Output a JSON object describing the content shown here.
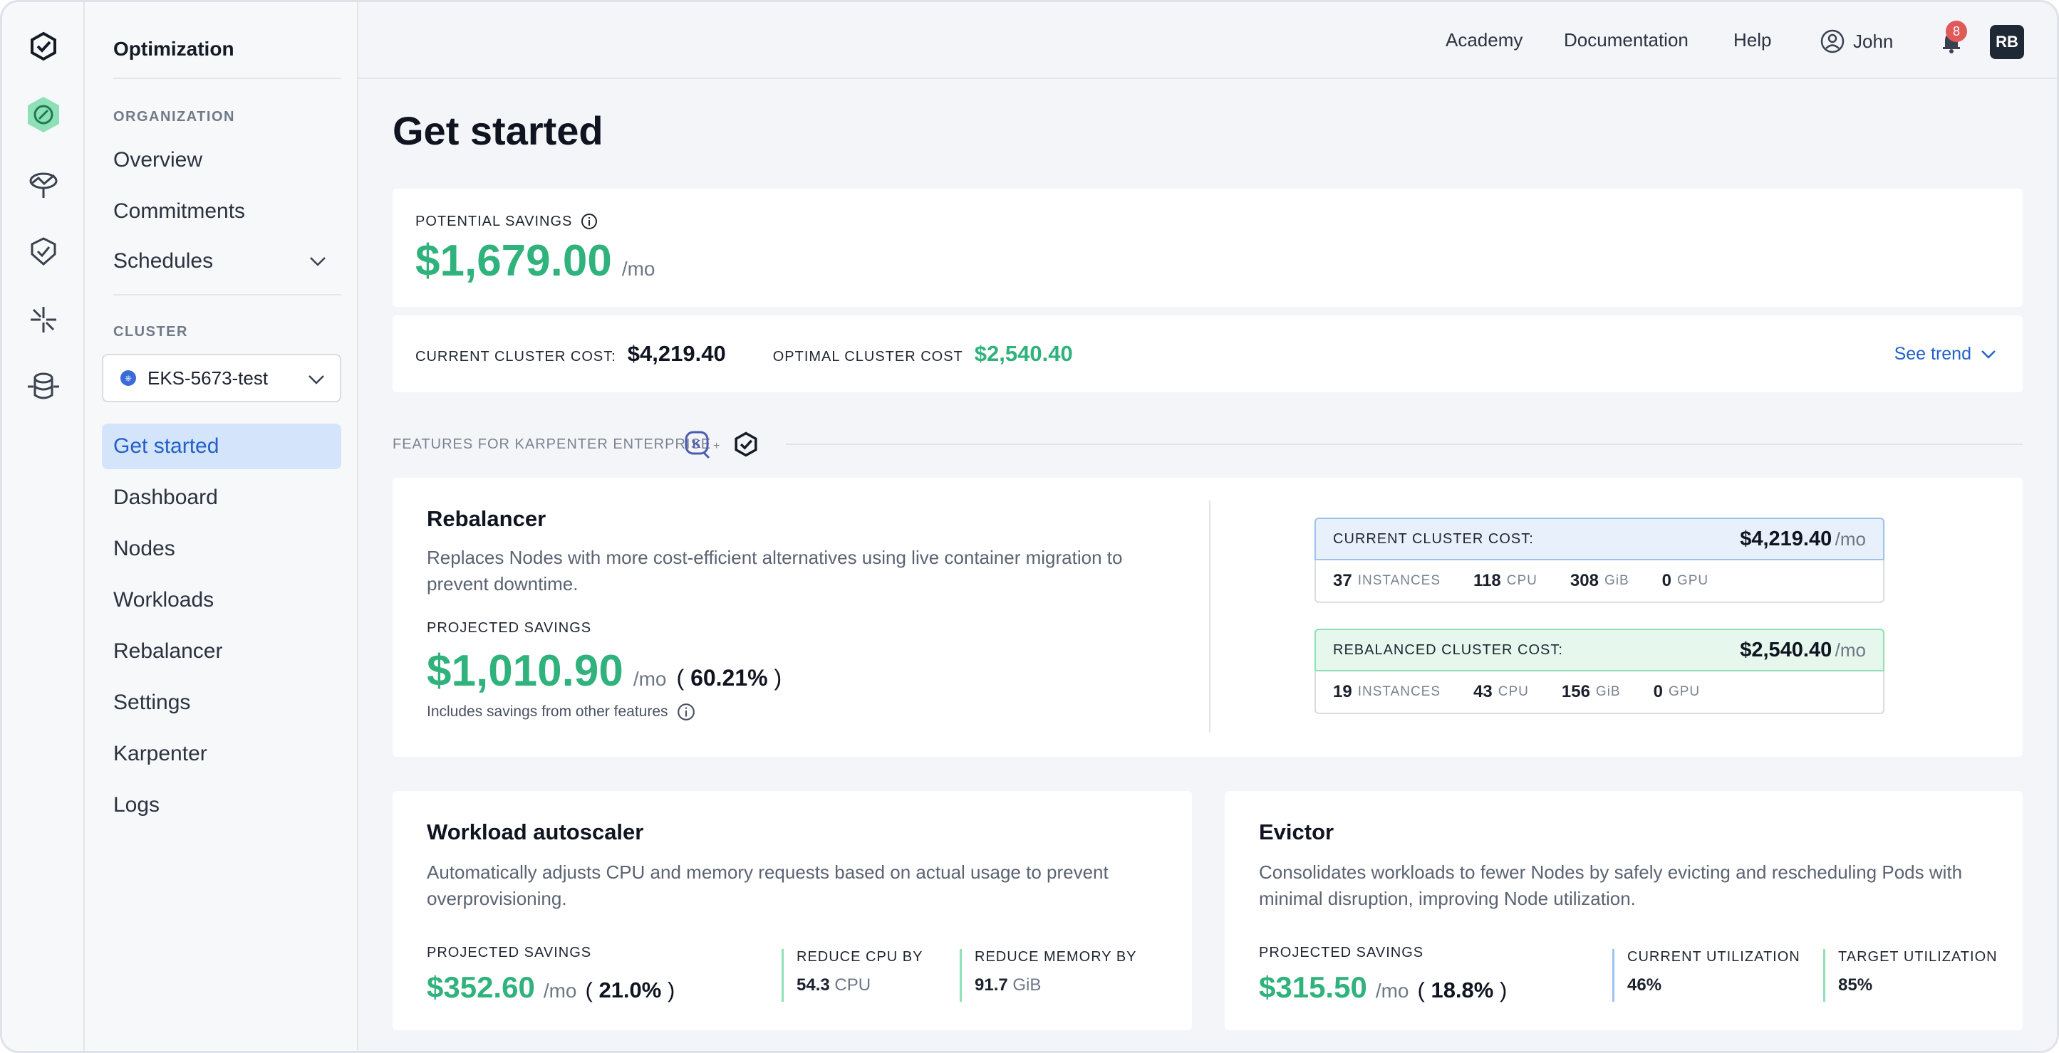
{
  "sidebar": {
    "title": "Optimization",
    "organization_label": "ORGANIZATION",
    "org_items": [
      "Overview",
      "Commitments",
      "Schedules"
    ],
    "cluster_label": "CLUSTER",
    "cluster_selected": "EKS-5673-test",
    "cluster_items": [
      "Get started",
      "Dashboard",
      "Nodes",
      "Workloads",
      "Rebalancer",
      "Settings",
      "Karpenter",
      "Logs"
    ]
  },
  "topbar": {
    "academy": "Academy",
    "documentation": "Documentation",
    "help": "Help",
    "user": "John",
    "notifications": "8",
    "avatar": "RB"
  },
  "page_title": "Get started",
  "savings": {
    "label": "POTENTIAL SAVINGS",
    "amount": "$1,679.00",
    "unit": "/mo",
    "current_label": "CURRENT CLUSTER COST:",
    "current_value": "$4,219.40",
    "optimal_label": "OPTIMAL CLUSTER COST",
    "optimal_value": "$2,540.40",
    "trend": "See trend"
  },
  "features_label": "FEATURES FOR KARPENTER ENTERPRISE",
  "rebalancer": {
    "title": "Rebalancer",
    "description": "Replaces Nodes with more cost-efficient alternatives using live container migration to prevent downtime.",
    "projected_label": "PROJECTED SAVINGS",
    "amount": "$1,010.90",
    "unit": "/mo",
    "percent": "60.21%",
    "note": "Includes savings from other features",
    "current": {
      "label": "CURRENT CLUSTER COST:",
      "value": "$4,219.40",
      "unit": "/mo",
      "instances": "37",
      "instances_label": "INSTANCES",
      "cpu": "118",
      "cpu_label": "CPU",
      "gib": "308",
      "gib_label": "GiB",
      "gpu": "0",
      "gpu_label": "GPU"
    },
    "rebalanced": {
      "label": "REBALANCED CLUSTER COST:",
      "value": "$2,540.40",
      "unit": "/mo",
      "instances": "19",
      "instances_label": "INSTANCES",
      "cpu": "43",
      "cpu_label": "CPU",
      "gib": "156",
      "gib_label": "GiB",
      "gpu": "0",
      "gpu_label": "GPU"
    }
  },
  "autoscaler": {
    "title": "Workload autoscaler",
    "description": "Automatically adjusts CPU and memory requests based on actual usage to prevent overprovisioning.",
    "projected_label": "PROJECTED SAVINGS",
    "amount": "$352.60",
    "unit": "/mo",
    "percent": "21.0%",
    "cpu_label": "REDUCE CPU BY",
    "cpu_value": "54.3",
    "cpu_unit": "CPU",
    "mem_label": "REDUCE MEMORY BY",
    "mem_value": "91.7",
    "mem_unit": "GiB"
  },
  "evictor": {
    "title": "Evictor",
    "description": "Consolidates workloads to fewer Nodes by safely evicting and rescheduling Pods with minimal disruption, improving Node utilization.",
    "projected_label": "PROJECTED SAVINGS",
    "amount": "$315.50",
    "unit": "/mo",
    "percent": "18.8%",
    "current_label": "CURRENT UTILIZATION",
    "current_value": "46%",
    "target_label": "TARGET UTILIZATION",
    "target_value": "85%"
  },
  "colors": {
    "accent_green": "#2fb27b",
    "accent_blue": "#2261c9",
    "active_nav_bg": "#d4e4fb"
  }
}
